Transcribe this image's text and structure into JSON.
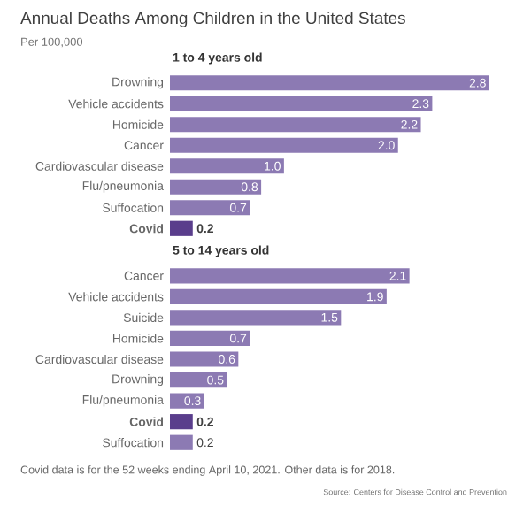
{
  "chart_data": [
    {
      "type": "bar",
      "orientation": "horizontal",
      "title": "Annual Deaths Among Children in the United States",
      "subtitle": "Per 100,000",
      "annotations": [
        "1 to 4 years old"
      ],
      "categories": [
        "Drowning",
        "Vehicle accidents",
        "Homicide",
        "Cancer",
        "Cardiovascular disease",
        "Flu/pneumonia",
        "Suffocation",
        "**Covid**"
      ],
      "values": [
        2.8,
        2.3,
        2.2,
        2.0,
        1.0,
        0.8,
        0.7,
        0.2
      ],
      "value_labels": [
        "2.8",
        "2.3",
        "2.2",
        "2.0",
        "1.0",
        "0.8",
        "0.7",
        "**0.2**"
      ],
      "colors": [
        "#8c7ab3",
        "#8c7ab3",
        "#8c7ab3",
        "#8c7ab3",
        "#8c7ab3",
        "#8c7ab3",
        "#8c7ab3",
        "#5a3e8c"
      ]
    },
    {
      "type": "bar",
      "orientation": "horizontal",
      "title": "5 to 14 years old",
      "annotations": [
        "Covid data is for the 52 weeks ending April 10, 2021. Other data is for 2018.",
        "Source: Centers for Disease Control and Prevention"
      ],
      "categories": [
        "Cancer",
        "Vehicle accidents",
        "Suicide",
        "Homicide",
        "Cardiovascular disease",
        "Drowning",
        "Flu/pneumonia",
        "**Covid**",
        "Suffocation"
      ],
      "values": [
        2.1,
        1.9,
        1.5,
        0.7,
        0.6,
        0.5,
        0.3,
        0.2,
        0.2
      ],
      "value_labels": [
        "2.1",
        "1.9",
        "1.5",
        "0.7",
        "0.6",
        "0.5",
        "0.3",
        "**0.2**",
        "0.2"
      ],
      "colors": [
        "#8c7ab3",
        "#8c7ab3",
        "#8c7ab3",
        "#8c7ab3",
        "#8c7ab3",
        "#8c7ab3",
        "#8c7ab3",
        "#5a3e8c",
        "#8c7ab3"
      ]
    }
  ]
}
